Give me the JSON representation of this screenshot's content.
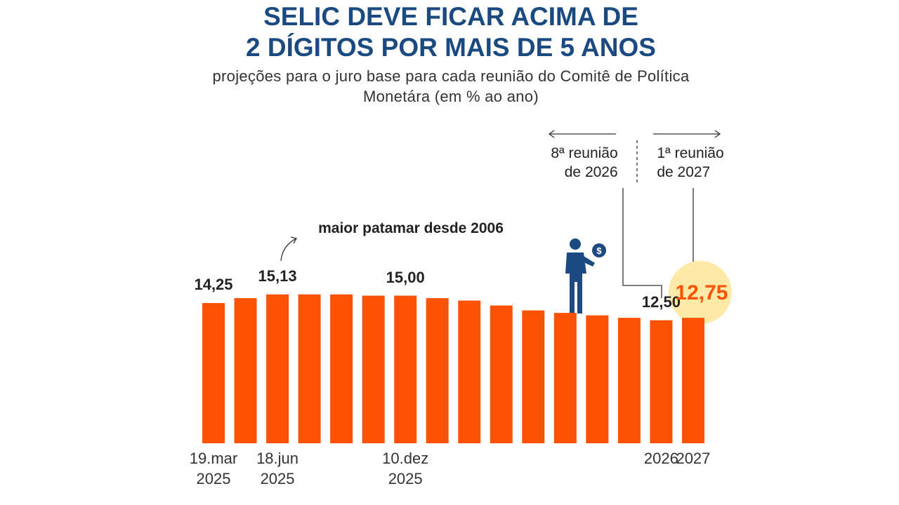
{
  "chart_data": {
    "type": "bar",
    "title": "SELIC DEVE FICAR ACIMA DE\n2 DÍGITOS POR MAIS DE 5 ANOS",
    "subtitle": "projeções para o juro base para cada reunião do Comitê de Política Monetára (em % ao ano)",
    "categories": [
      "19.mar\n2025",
      null,
      "18.jun\n2025",
      null,
      null,
      null,
      "10.dez\n2025",
      null,
      null,
      null,
      null,
      null,
      null,
      null,
      "2026",
      "2027"
    ],
    "values": [
      14.25,
      14.75,
      15.13,
      15.13,
      15.13,
      15.0,
      15.0,
      14.75,
      14.5,
      14.0,
      13.5,
      13.25,
      13.0,
      12.75,
      12.5,
      12.75
    ],
    "value_labels": [
      "14,25",
      null,
      "15,13",
      null,
      null,
      null,
      "15,00",
      null,
      null,
      null,
      null,
      null,
      null,
      null,
      "12,50",
      "12,75"
    ],
    "color": "#fc5205",
    "highlight_color": "#fde9a8",
    "ylim": [
      0,
      16
    ],
    "grid": false,
    "annotations": [
      "maior patamar desde 2006",
      "8ª reunião\nde 2026",
      "1ª reunião\nde 2027"
    ]
  }
}
